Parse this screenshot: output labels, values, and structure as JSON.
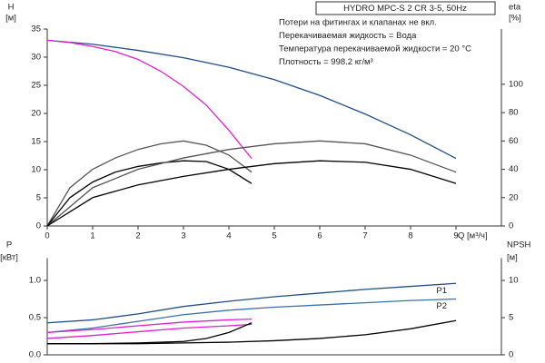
{
  "chart_data": [
    {
      "type": "line",
      "title": "HYDRO MPC-S 2 CR 3-5, 50Hz",
      "notes": [
        "Потери на фитингах и клапанах не вкл.",
        "Перекачиваемая жидкость = Вода",
        "Температура перекачиваемой жидкости = 20 °C",
        "Плотность = 998.2 кг/м³"
      ],
      "y_label": [
        "H",
        "[м]"
      ],
      "y2_label": [
        "eta",
        "[%]"
      ],
      "x_label": "Q [м³/ч]",
      "xlim": [
        0,
        10
      ],
      "xticks": [
        0,
        1,
        2,
        3,
        4,
        5,
        6,
        7,
        8,
        9
      ],
      "ylim": [
        0,
        35
      ],
      "yticks": [
        0,
        5,
        10,
        15,
        20,
        25,
        30,
        35
      ],
      "y2lim": [
        0,
        139
      ],
      "y2ticks": [
        0,
        20,
        40,
        60,
        80,
        100
      ],
      "series": [
        {
          "color": "#1f4e8c",
          "x": [
            0,
            1,
            2,
            3,
            4,
            5,
            6,
            7,
            8,
            9
          ],
          "values": [
            33,
            32.3,
            31.2,
            29.9,
            28.2,
            26,
            23.2,
            19.9,
            16.2,
            12
          ]
        },
        {
          "color": "#e020d0",
          "x": [
            0,
            0.5,
            1,
            1.5,
            2,
            2.5,
            3,
            3.5,
            4,
            4.5
          ],
          "values": [
            33,
            32.6,
            31.9,
            31,
            29.6,
            27.5,
            24.8,
            21.5,
            17,
            12
          ]
        },
        {
          "color": "#555555",
          "axis": "y2",
          "x": [
            0,
            0.5,
            1,
            1.5,
            2,
            2.5,
            3,
            3.5,
            4,
            4.5
          ],
          "values": [
            0,
            27,
            40,
            48,
            54,
            58,
            60,
            57,
            50,
            38
          ]
        },
        {
          "color": "#000000",
          "axis": "y2",
          "x": [
            0,
            0.5,
            1,
            1.5,
            2,
            2.5,
            3,
            3.5,
            4,
            4.5
          ],
          "values": [
            0,
            20,
            31,
            38,
            42,
            44.5,
            46,
            45.5,
            40,
            30
          ]
        },
        {
          "color": "#555555",
          "axis": "y2",
          "x": [
            0,
            1,
            2,
            3,
            4,
            5,
            6,
            7,
            8,
            9
          ],
          "values": [
            0,
            27,
            40,
            48,
            54,
            58,
            60,
            58,
            50,
            38
          ]
        },
        {
          "color": "#000000",
          "axis": "y2",
          "x": [
            0,
            1,
            2,
            3,
            4,
            5,
            6,
            7,
            8,
            9
          ],
          "values": [
            0,
            20,
            29,
            35,
            40,
            44,
            46,
            45,
            40,
            30
          ]
        }
      ]
    },
    {
      "type": "line",
      "y_label": [
        "P",
        "[кВт]"
      ],
      "y2_label": [
        "NPSH",
        "[м]"
      ],
      "xlim": [
        0,
        10
      ],
      "ylim": [
        0,
        1.3
      ],
      "yticks": [
        {
          "value": 0,
          "label": "0.0"
        },
        0.5,
        {
          "value": 1,
          "label": "1.0"
        }
      ],
      "y2lim": [
        0,
        13
      ],
      "y2ticks": [
        0,
        5,
        10
      ],
      "series": [
        {
          "name": "P1",
          "color": "#1f4e8c",
          "x": [
            0,
            1,
            2,
            3,
            4,
            5,
            6,
            7,
            8,
            9
          ],
          "values": [
            0.43,
            0.47,
            0.55,
            0.65,
            0.72,
            0.78,
            0.83,
            0.88,
            0.92,
            0.96
          ]
        },
        {
          "name": "P2",
          "color": "#3a6fb0",
          "x": [
            0,
            1,
            2,
            3,
            4,
            5,
            6,
            7,
            8,
            9
          ],
          "values": [
            0.3,
            0.36,
            0.45,
            0.54,
            0.6,
            0.64,
            0.67,
            0.7,
            0.73,
            0.75
          ]
        },
        {
          "color": "#e020d0",
          "x": [
            0,
            1,
            2,
            3,
            4,
            4.5
          ],
          "values": [
            0.3,
            0.34,
            0.39,
            0.44,
            0.47,
            0.48
          ]
        },
        {
          "color": "#e020d0",
          "x": [
            0,
            1,
            2,
            3,
            4,
            4.5
          ],
          "values": [
            0.22,
            0.26,
            0.31,
            0.36,
            0.39,
            0.41
          ]
        },
        {
          "color": "#000000",
          "axis": "y2",
          "x": [
            0,
            1,
            2,
            3,
            4,
            5,
            6,
            7,
            8,
            9
          ],
          "values": [
            1.5,
            1.5,
            1.5,
            1.6,
            1.7,
            1.9,
            2.2,
            2.7,
            3.5,
            4.6
          ]
        },
        {
          "color": "#000000",
          "axis": "y2",
          "x": [
            0,
            1,
            2,
            3,
            3.5,
            4,
            4.5
          ],
          "values": [
            1.5,
            1.5,
            1.6,
            1.8,
            2.2,
            3,
            4.3
          ]
        }
      ]
    }
  ]
}
